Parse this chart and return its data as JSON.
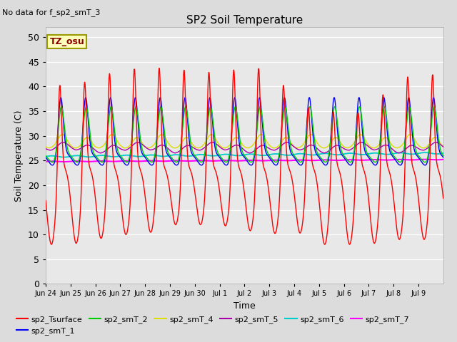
{
  "title": "SP2 Soil Temperature",
  "subtitle": "No data for f_sp2_smT_3",
  "xlabel": "Time",
  "ylabel": "Soil Temperature (C)",
  "tz_label": "TZ_osu",
  "ylim": [
    0,
    52
  ],
  "yticks": [
    0,
    5,
    10,
    15,
    20,
    25,
    30,
    35,
    40,
    45,
    50
  ],
  "bg_color": "#dcdcdc",
  "plot_bg_color": "#e8e8e8",
  "series_colors": {
    "sp2_Tsurface": "#ff0000",
    "sp2_smT_1": "#0000ff",
    "sp2_smT_2": "#00cc00",
    "sp2_smT_4": "#dddd00",
    "sp2_smT_5": "#aa00aa",
    "sp2_smT_6": "#00cccc",
    "sp2_smT_7": "#ff00ff"
  },
  "x_tick_labels": [
    "Jun 24",
    "Jun 25",
    "Jun 26",
    "Jun 27",
    "Jun 28",
    "Jun 29",
    "Jun 30",
    "Jul 1",
    "Jul 2",
    "Jul 3",
    "Jul 4",
    "Jul 5",
    "Jul 6",
    "Jul 7",
    "Jul 8",
    "Jul 9"
  ],
  "legend_entries": [
    "sp2_Tsurface",
    "sp2_smT_1",
    "sp2_smT_2",
    "sp2_smT_4",
    "sp2_smT_5",
    "sp2_smT_6",
    "sp2_smT_7"
  ]
}
